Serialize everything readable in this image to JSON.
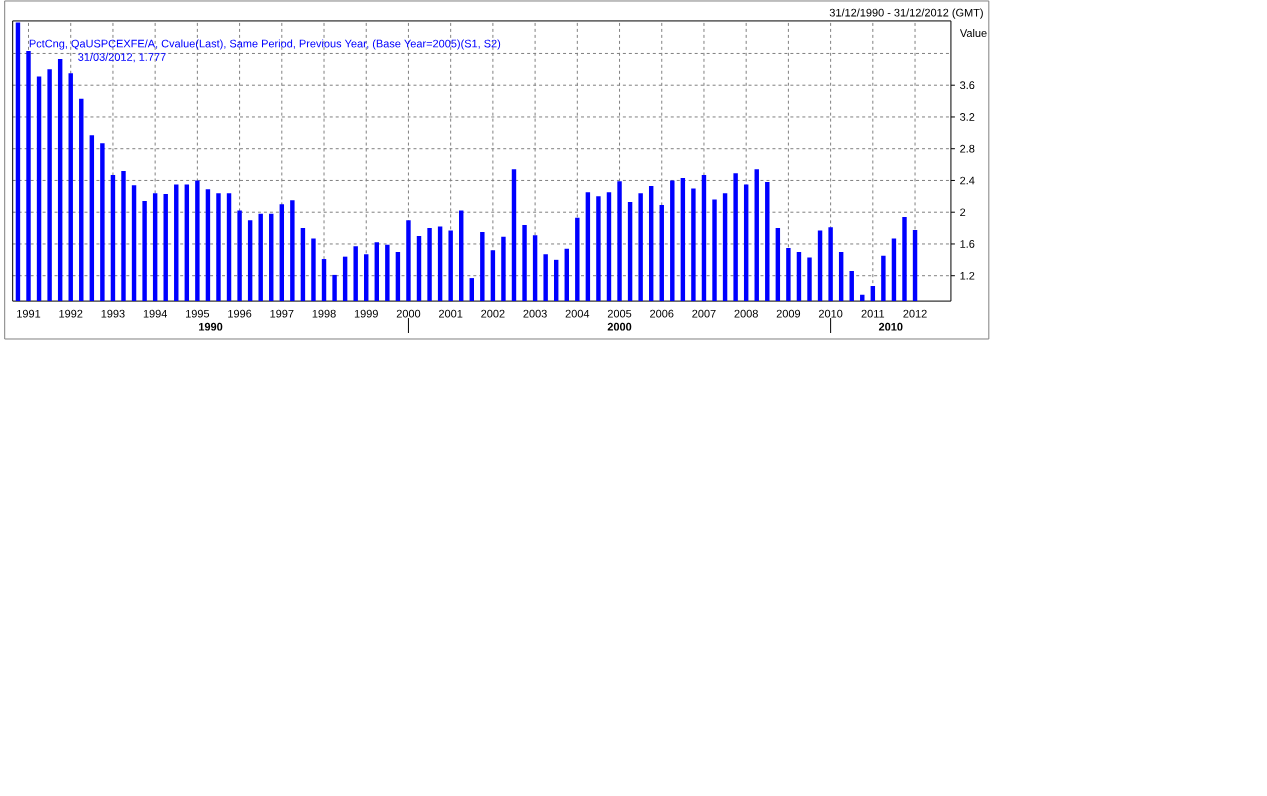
{
  "chart_data": {
    "type": "bar",
    "ylabel": "Value",
    "categories": [
      null,
      "1991",
      null,
      null,
      null,
      "1992",
      null,
      null,
      null,
      "1993",
      null,
      null,
      null,
      "1994",
      null,
      null,
      null,
      "1995",
      null,
      null,
      null,
      "1996",
      null,
      null,
      null,
      "1997",
      null,
      null,
      null,
      "1998",
      null,
      null,
      null,
      "1999",
      null,
      null,
      null,
      "2000",
      null,
      null,
      null,
      "2001",
      null,
      null,
      null,
      "2002",
      null,
      null,
      null,
      "2003",
      null,
      null,
      null,
      "2004",
      null,
      null,
      null,
      "2005",
      null,
      null,
      null,
      "2006",
      null,
      null,
      null,
      "2007",
      null,
      null,
      null,
      "2008",
      null,
      null,
      null,
      "2009",
      null,
      null,
      null,
      "2010",
      null,
      null,
      null,
      "2011",
      null,
      null,
      null,
      "2012"
    ],
    "series": [
      {
        "name": "PctCng, QaUSPCEXFE/A, Cvalue(Last), Same Period, Previous Year, (Base Year=2005)(S1, S2)",
        "color": "#0000ff",
        "values": [
          4.39,
          4.03,
          3.71,
          3.8,
          3.93,
          3.75,
          3.43,
          2.97,
          2.87,
          2.47,
          2.52,
          2.34,
          2.14,
          2.24,
          2.23,
          2.35,
          2.35,
          2.4,
          2.29,
          2.24,
          2.24,
          2.02,
          1.9,
          1.98,
          1.98,
          2.1,
          2.15,
          1.8,
          1.67,
          1.41,
          1.21,
          1.44,
          1.57,
          1.47,
          1.62,
          1.59,
          1.5,
          1.9,
          1.7,
          1.8,
          1.82,
          1.77,
          2.02,
          1.17,
          1.75,
          1.52,
          1.69,
          2.54,
          1.84,
          1.71,
          1.47,
          1.4,
          1.54,
          1.93,
          2.25,
          2.2,
          2.25,
          2.39,
          2.13,
          2.24,
          2.33,
          2.09,
          2.4,
          2.43,
          2.3,
          2.47,
          2.16,
          2.24,
          2.49,
          2.35,
          2.54,
          2.38,
          1.8,
          1.55,
          1.5,
          1.43,
          1.77,
          1.81,
          1.5,
          1.26,
          0.96,
          1.07,
          1.45,
          1.67,
          1.94,
          1.777
        ]
      }
    ],
    "ylim": [
      0.88,
      4.41
    ],
    "yticks": [
      1.2,
      1.6,
      2,
      2.4,
      2.8,
      3.2,
      3.6,
      {
        "value": 4,
        "label": null
      }
    ],
    "grid": true,
    "annotations": [
      "31/12/1990 - 31/12/2012 (GMT)",
      "31/03/2012, 1.777",
      "1990",
      "2000",
      "2010"
    ]
  }
}
